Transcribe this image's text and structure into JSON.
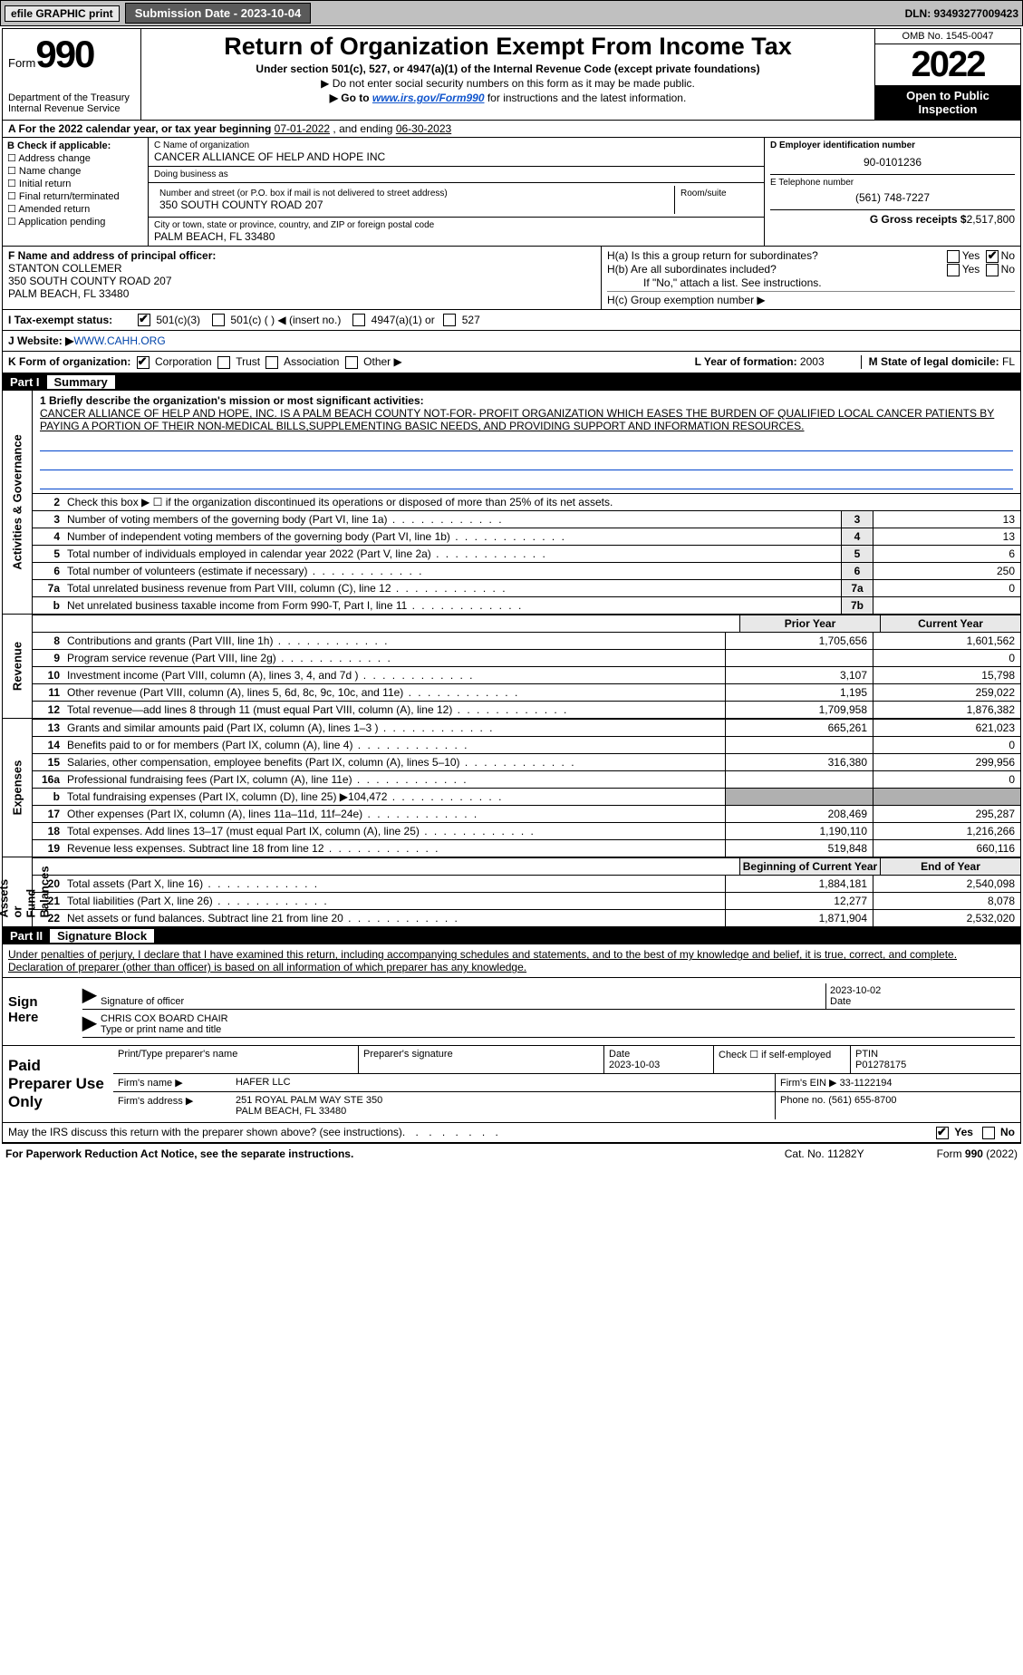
{
  "topbar": {
    "efile": "efile GRAPHIC print",
    "sub_label": "Submission Date - 2023-10-04",
    "dln": "DLN: 93493277009423"
  },
  "header": {
    "form_prefix": "Form",
    "form_num": "990",
    "dept": "Department of the Treasury\nInternal Revenue Service",
    "title": "Return of Organization Exempt From Income Tax",
    "sub1": "Under section 501(c), 527, or 4947(a)(1) of the Internal Revenue Code (except private foundations)",
    "sub2a": "▶ Do not enter social security numbers on this form as it may be made public.",
    "sub2b_pre": "▶ Go to ",
    "sub2b_link": "www.irs.gov/Form990",
    "sub2b_post": " for instructions and the latest information.",
    "omb": "OMB No. 1545-0047",
    "year": "2022",
    "open": "Open to Public Inspection"
  },
  "rowA": {
    "text_a": "A For the 2022 calendar year, or tax year beginning ",
    "begin": "07-01-2022",
    "mid": "    , and ending ",
    "end": "06-30-2023"
  },
  "colB": {
    "label": "B Check if applicable:",
    "items": [
      "Address change",
      "Name change",
      "Initial return",
      "Final return/terminated",
      "Amended return",
      "Application pending"
    ]
  },
  "colC": {
    "name_label": "C Name of organization",
    "name": "CANCER ALLIANCE OF HELP AND HOPE INC",
    "dba_label": "Doing business as",
    "dba": "",
    "street_label": "Number and street (or P.O. box if mail is not delivered to street address)",
    "street": "350 SOUTH COUNTY ROAD 207",
    "room_label": "Room/suite",
    "city_label": "City or town, state or province, country, and ZIP or foreign postal code",
    "city": "PALM BEACH, FL  33480"
  },
  "colD": {
    "ein_label": "D Employer identification number",
    "ein": "90-0101236",
    "tel_label": "E Telephone number",
    "tel": "(561) 748-7227",
    "gross_label": "G Gross receipts $",
    "gross": "2,517,800"
  },
  "colF": {
    "label": "F  Name and address of principal officer:",
    "name": "STANTON COLLEMER",
    "addr1": "350 SOUTH COUNTY ROAD 207",
    "addr2": "PALM BEACH, FL  33480"
  },
  "colH": {
    "ha": "H(a)  Is this a group return for subordinates?",
    "hb": "H(b)  Are all subordinates included?",
    "hb_note": "If \"No,\" attach a list. See instructions.",
    "hc": "H(c)  Group exemption number ▶",
    "yes": "Yes",
    "no": "No"
  },
  "rowI": {
    "label": "I  Tax-exempt status:",
    "o1": "501(c)(3)",
    "o2": "501(c) (  ) ◀ (insert no.)",
    "o3": "4947(a)(1) or",
    "o4": "527"
  },
  "rowJ": {
    "label": "J  Website: ▶ ",
    "url": "WWW.CAHH.ORG"
  },
  "rowK": {
    "label": "K Form of organization:",
    "o1": "Corporation",
    "o2": "Trust",
    "o3": "Association",
    "o4": "Other ▶",
    "l_label": "L Year of formation: ",
    "l_val": "2003",
    "m_label": "M State of legal domicile: ",
    "m_val": "FL"
  },
  "part1": {
    "num": "Part I",
    "title": "Summary"
  },
  "mission": {
    "label": "1  Briefly describe the organization's mission or most significant activities:",
    "text": "CANCER ALLIANCE OF HELP AND HOPE, INC. IS A PALM BEACH COUNTY NOT-FOR- PROFIT ORGANIZATION WHICH EASES THE BURDEN OF QUALIFIED LOCAL CANCER PATIENTS BY PAYING A PORTION OF THEIR NON-MEDICAL BILLS,SUPPLEMENTING BASIC NEEDS, AND PROVIDING SUPPORT AND INFORMATION RESOURCES."
  },
  "lines_ag": [
    {
      "n": "2",
      "t": "Check this box ▶ ☐  if the organization discontinued its operations or disposed of more than 25% of its net assets.",
      "c": "",
      "v": ""
    },
    {
      "n": "3",
      "t": "Number of voting members of the governing body (Part VI, line 1a)",
      "c": "3",
      "v": "13"
    },
    {
      "n": "4",
      "t": "Number of independent voting members of the governing body (Part VI, line 1b)",
      "c": "4",
      "v": "13"
    },
    {
      "n": "5",
      "t": "Total number of individuals employed in calendar year 2022 (Part V, line 2a)",
      "c": "5",
      "v": "6"
    },
    {
      "n": "6",
      "t": "Total number of volunteers (estimate if necessary)",
      "c": "6",
      "v": "250"
    },
    {
      "n": "7a",
      "t": "Total unrelated business revenue from Part VIII, column (C), line 12",
      "c": "7a",
      "v": "0"
    },
    {
      "n": " b",
      "t": "Net unrelated business taxable income from Form 990-T, Part I, line 11",
      "c": "7b",
      "v": ""
    }
  ],
  "hdr_rev": {
    "c1": "Prior Year",
    "c2": "Current Year"
  },
  "lines_rev": [
    {
      "n": "8",
      "t": "Contributions and grants (Part VIII, line 1h)",
      "v1": "1,705,656",
      "v2": "1,601,562"
    },
    {
      "n": "9",
      "t": "Program service revenue (Part VIII, line 2g)",
      "v1": "",
      "v2": "0"
    },
    {
      "n": "10",
      "t": "Investment income (Part VIII, column (A), lines 3, 4, and 7d )",
      "v1": "3,107",
      "v2": "15,798"
    },
    {
      "n": "11",
      "t": "Other revenue (Part VIII, column (A), lines 5, 6d, 8c, 9c, 10c, and 11e)",
      "v1": "1,195",
      "v2": "259,022"
    },
    {
      "n": "12",
      "t": "Total revenue—add lines 8 through 11 (must equal Part VIII, column (A), line 12)",
      "v1": "1,709,958",
      "v2": "1,876,382"
    }
  ],
  "lines_exp": [
    {
      "n": "13",
      "t": "Grants and similar amounts paid (Part IX, column (A), lines 1–3 )",
      "v1": "665,261",
      "v2": "621,023"
    },
    {
      "n": "14",
      "t": "Benefits paid to or for members (Part IX, column (A), line 4)",
      "v1": "",
      "v2": "0"
    },
    {
      "n": "15",
      "t": "Salaries, other compensation, employee benefits (Part IX, column (A), lines 5–10)",
      "v1": "316,380",
      "v2": "299,956"
    },
    {
      "n": "16a",
      "t": "Professional fundraising fees (Part IX, column (A), line 11e)",
      "v1": "",
      "v2": "0"
    },
    {
      "n": "b",
      "t": "Total fundraising expenses (Part IX, column (D), line 25) ▶104,472",
      "v1": "grey",
      "v2": "grey"
    },
    {
      "n": "17",
      "t": "Other expenses (Part IX, column (A), lines 11a–11d, 11f–24e)",
      "v1": "208,469",
      "v2": "295,287"
    },
    {
      "n": "18",
      "t": "Total expenses. Add lines 13–17 (must equal Part IX, column (A), line 25)",
      "v1": "1,190,110",
      "v2": "1,216,266"
    },
    {
      "n": "19",
      "t": "Revenue less expenses. Subtract line 18 from line 12",
      "v1": "519,848",
      "v2": "660,116"
    }
  ],
  "hdr_na": {
    "c1": "Beginning of Current Year",
    "c2": "End of Year"
  },
  "lines_na": [
    {
      "n": "20",
      "t": "Total assets (Part X, line 16)",
      "v1": "1,884,181",
      "v2": "2,540,098"
    },
    {
      "n": "21",
      "t": "Total liabilities (Part X, line 26)",
      "v1": "12,277",
      "v2": "8,078"
    },
    {
      "n": "22",
      "t": "Net assets or fund balances. Subtract line 21 from line 20",
      "v1": "1,871,904",
      "v2": "2,532,020"
    }
  ],
  "sides": {
    "ag": "Activities & Governance",
    "rev": "Revenue",
    "exp": "Expenses",
    "na": "Net Assets or\nFund Balances"
  },
  "part2": {
    "num": "Part II",
    "title": "Signature Block"
  },
  "sig_intro": "Under penalties of perjury, I declare that I have examined this return, including accompanying schedules and statements, and to the best of my knowledge and belief, it is true, correct, and complete. Declaration of preparer (other than officer) is based on all information of which preparer has any knowledge.",
  "sign": {
    "here": "Sign Here",
    "sig_label": "Signature of officer",
    "date_label": "Date",
    "date": "2023-10-02",
    "name": "CHRIS COX  BOARD CHAIR",
    "name_label": "Type or print name and title"
  },
  "paid": {
    "here": "Paid Preparer Use Only",
    "h1": "Print/Type preparer's name",
    "h2": "Preparer's signature",
    "h3": "Date",
    "h3v": "2023-10-03",
    "h4": "Check ☐ if self-employed",
    "h5": "PTIN",
    "h5v": "P01278175",
    "firm_label": "Firm's name    ▶ ",
    "firm": "HAFER LLC",
    "ein_label": "Firm's EIN ▶ ",
    "ein": "33-1122194",
    "addr_label": "Firm's address ▶ ",
    "addr": "251 ROYAL PALM WAY STE 350\nPALM BEACH, FL  33480",
    "phone_label": "Phone no. ",
    "phone": "(561) 655-8700"
  },
  "footer_q": "May the IRS discuss this return with the preparer shown above? (see instructions)",
  "bottom": {
    "l": "For Paperwork Reduction Act Notice, see the separate instructions.",
    "m": "Cat. No. 11282Y",
    "r": "Form 990 (2022)"
  }
}
